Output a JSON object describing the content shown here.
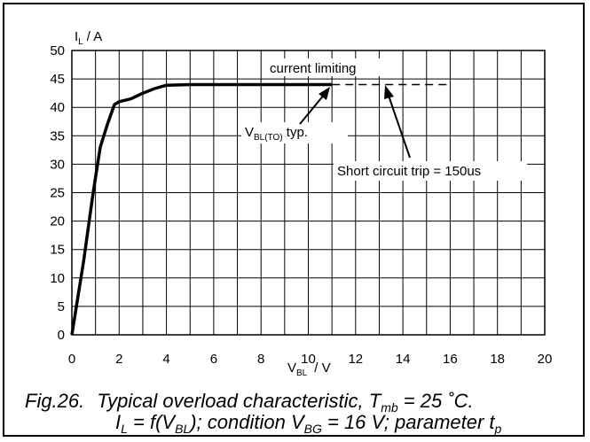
{
  "chart_data": {
    "type": "line",
    "y_axis": {
      "symbol": "I",
      "sub": "L",
      "unit": "/  A",
      "range": [
        0,
        50
      ],
      "ticks": [
        "0",
        "5",
        "10",
        "15",
        "20",
        "25",
        "30",
        "35",
        "40",
        "45",
        "50"
      ]
    },
    "x_axis": {
      "symbol": "V",
      "sub": "BL",
      "unit": "/  V",
      "range": [
        0,
        20
      ],
      "ticks": [
        "0",
        "2",
        "4",
        "6",
        "8",
        "10",
        "12",
        "14",
        "16",
        "18",
        "20"
      ]
    },
    "grid": "on",
    "series": [
      {
        "style": "solid",
        "x": [
          0,
          0.5,
          0.9,
          1.2,
          1.5,
          1.8,
          2.0,
          2.5,
          3.0,
          3.5,
          4.0,
          5.0,
          6.0,
          8.0,
          10.0,
          11.0
        ],
        "y": [
          0,
          13,
          25,
          33,
          37,
          40.5,
          41,
          41.5,
          42.5,
          43.3,
          43.9,
          44,
          44,
          44,
          44,
          44
        ]
      },
      {
        "style": "dashed",
        "x": [
          11.0,
          16.0
        ],
        "y": [
          44,
          44
        ]
      }
    ],
    "annotations": {
      "current_limiting": "current limiting",
      "vbl_sym": "V",
      "vbl_sub": "BL(TO)",
      "vbl_rest": " typ.",
      "short_circuit": "Short circuit trip = 150us"
    },
    "caption": {
      "fig": "Fig.26.",
      "title_pre": "Typical overload characteristic, T",
      "title_sub": "mb",
      "title_post": " = 25 ˚C.",
      "l2_a": "I",
      "l2_a_sub": "L",
      "l2_b": " = f(V",
      "l2_b_sub": "BL",
      "l2_c": "); condition V",
      "l2_c_sub": "BG",
      "l2_d": " = 16 V; parameter t",
      "l2_d_sub": "p"
    }
  }
}
